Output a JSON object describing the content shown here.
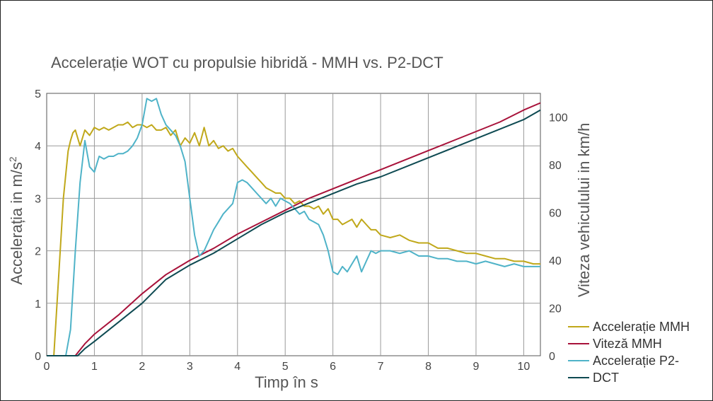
{
  "chart_data": {
    "type": "line",
    "title": "Accelerație WOT cu propulsie hibridă - MMH vs. P2-DCT",
    "xlabel": "Timp în s",
    "ylabel_left_main": "Accelerația in m/s",
    "ylabel_left_sup": "2",
    "ylabel_right": "Viteza vehiculului in km/h",
    "xlim": [
      0,
      10.35
    ],
    "ylim_left": [
      0,
      5
    ],
    "ylim_right": [
      0,
      110
    ],
    "x_ticks": [
      "0",
      "1",
      "2",
      "3",
      "4",
      "5",
      "6",
      "7",
      "8",
      "9",
      "10"
    ],
    "y_left_ticks": [
      "0",
      "1",
      "2",
      "3",
      "4",
      "5"
    ],
    "y_right_ticks": [
      "0",
      "20",
      "40",
      "60",
      "80",
      "100"
    ],
    "grid": true,
    "legend_position": "bottom-right",
    "series": [
      {
        "name": "Accelerație MMH",
        "axis": "left",
        "color": "#c0a81a",
        "x": [
          0,
          0.15,
          0.25,
          0.35,
          0.45,
          0.5,
          0.55,
          0.6,
          0.7,
          0.8,
          0.9,
          1.0,
          1.1,
          1.2,
          1.3,
          1.4,
          1.5,
          1.6,
          1.7,
          1.8,
          1.9,
          2.0,
          2.1,
          2.2,
          2.3,
          2.4,
          2.5,
          2.6,
          2.7,
          2.8,
          2.9,
          3.0,
          3.1,
          3.2,
          3.3,
          3.4,
          3.5,
          3.6,
          3.7,
          3.8,
          3.9,
          4.0,
          4.1,
          4.2,
          4.3,
          4.4,
          4.5,
          4.6,
          4.7,
          4.8,
          4.9,
          5.0,
          5.1,
          5.2,
          5.3,
          5.4,
          5.5,
          5.6,
          5.7,
          5.8,
          5.9,
          6.0,
          6.1,
          6.2,
          6.3,
          6.4,
          6.5,
          6.6,
          6.7,
          6.8,
          6.9,
          7.0,
          7.2,
          7.4,
          7.6,
          7.8,
          8.0,
          8.2,
          8.4,
          8.6,
          8.8,
          9.0,
          9.2,
          9.4,
          9.6,
          9.8,
          10.0,
          10.2,
          10.35
        ],
        "values": [
          0,
          0,
          1.5,
          3.0,
          3.9,
          4.1,
          4.25,
          4.3,
          4.0,
          4.3,
          4.2,
          4.35,
          4.3,
          4.35,
          4.3,
          4.35,
          4.4,
          4.4,
          4.45,
          4.35,
          4.4,
          4.4,
          4.35,
          4.4,
          4.3,
          4.3,
          4.35,
          4.2,
          4.3,
          4.0,
          4.15,
          4.05,
          4.25,
          4.0,
          4.35,
          4.0,
          4.1,
          3.95,
          4.0,
          3.9,
          3.95,
          3.8,
          3.7,
          3.6,
          3.5,
          3.4,
          3.3,
          3.2,
          3.15,
          3.1,
          3.1,
          3.0,
          3.0,
          2.9,
          2.95,
          2.85,
          2.85,
          2.8,
          2.85,
          2.7,
          2.8,
          2.6,
          2.6,
          2.5,
          2.55,
          2.6,
          2.45,
          2.6,
          2.5,
          2.4,
          2.4,
          2.3,
          2.25,
          2.3,
          2.2,
          2.15,
          2.15,
          2.05,
          2.05,
          2.0,
          1.95,
          1.95,
          1.9,
          1.85,
          1.85,
          1.8,
          1.8,
          1.75,
          1.75
        ]
      },
      {
        "name": "Viteză MMH",
        "axis": "right",
        "color": "#a8123a",
        "x": [
          0,
          0.2,
          0.6,
          0.8,
          1.0,
          1.5,
          2.0,
          2.5,
          3.0,
          3.5,
          4.0,
          4.5,
          5.0,
          5.5,
          6.0,
          6.5,
          7.0,
          7.5,
          8.0,
          8.5,
          9.0,
          9.5,
          10.0,
          10.35
        ],
        "values": [
          0,
          0,
          0,
          5,
          9,
          17,
          26,
          34,
          40,
          45,
          51,
          56,
          61,
          66,
          70,
          74,
          78,
          82,
          86,
          90,
          94,
          98,
          103,
          106
        ]
      },
      {
        "name": "Accelerație P2-DCT",
        "axis": "left",
        "color": "#4fb3c8",
        "x": [
          0,
          0.2,
          0.3,
          0.4,
          0.5,
          0.6,
          0.7,
          0.8,
          0.9,
          1.0,
          1.1,
          1.2,
          1.3,
          1.4,
          1.5,
          1.6,
          1.7,
          1.8,
          1.9,
          2.0,
          2.1,
          2.2,
          2.3,
          2.4,
          2.5,
          2.6,
          2.7,
          2.8,
          2.9,
          3.0,
          3.1,
          3.2,
          3.3,
          3.4,
          3.5,
          3.6,
          3.7,
          3.8,
          3.9,
          4.0,
          4.1,
          4.2,
          4.3,
          4.4,
          4.5,
          4.6,
          4.7,
          4.8,
          4.9,
          5.0,
          5.1,
          5.2,
          5.3,
          5.4,
          5.5,
          5.6,
          5.7,
          5.8,
          5.9,
          6.0,
          6.1,
          6.2,
          6.3,
          6.4,
          6.5,
          6.6,
          6.7,
          6.8,
          6.9,
          7.0,
          7.2,
          7.4,
          7.6,
          7.8,
          8.0,
          8.2,
          8.4,
          8.6,
          8.8,
          9.0,
          9.2,
          9.4,
          9.6,
          9.8,
          10.0,
          10.2,
          10.35
        ],
        "values": [
          0,
          0,
          0,
          0,
          0.5,
          2.0,
          3.3,
          4.1,
          3.6,
          3.5,
          3.8,
          3.75,
          3.8,
          3.8,
          3.85,
          3.85,
          3.9,
          4.0,
          4.15,
          4.4,
          4.9,
          4.85,
          4.9,
          4.6,
          4.4,
          4.3,
          4.2,
          4.0,
          3.7,
          3.0,
          2.3,
          1.9,
          2.0,
          2.2,
          2.4,
          2.55,
          2.7,
          2.8,
          2.9,
          3.3,
          3.35,
          3.3,
          3.2,
          3.1,
          3.0,
          2.9,
          3.0,
          2.85,
          3.0,
          2.95,
          2.9,
          2.8,
          2.7,
          2.75,
          2.6,
          2.55,
          2.5,
          2.3,
          2.0,
          1.6,
          1.55,
          1.7,
          1.6,
          1.75,
          1.9,
          1.6,
          1.8,
          2.0,
          1.95,
          2.0,
          2.0,
          1.95,
          2.0,
          1.9,
          1.9,
          1.85,
          1.85,
          1.8,
          1.8,
          1.75,
          1.8,
          1.75,
          1.7,
          1.75,
          1.7,
          1.7,
          1.7
        ]
      },
      {
        "name": "DCT",
        "axis": "right",
        "color": "#0e4a52",
        "x": [
          0,
          0.5,
          0.65,
          0.8,
          1.0,
          1.5,
          2.0,
          2.5,
          3.0,
          3.5,
          4.0,
          4.5,
          5.0,
          5.5,
          6.0,
          6.5,
          7.0,
          7.5,
          8.0,
          8.5,
          9.0,
          9.5,
          10.0,
          10.35
        ],
        "values": [
          0,
          0,
          0,
          3,
          6,
          14,
          22,
          32,
          38,
          43,
          49,
          55,
          60,
          64,
          68,
          72,
          75,
          79,
          83,
          87,
          91,
          95,
          99,
          103
        ]
      }
    ],
    "legend_labels": [
      "Accelerație MMH",
      "Viteză MMH",
      "Accelerație P2-",
      "DCT"
    ]
  }
}
